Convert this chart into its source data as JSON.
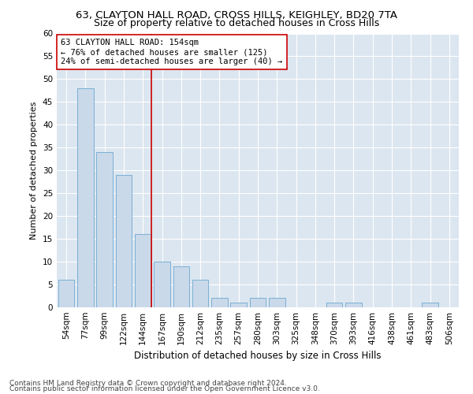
{
  "title": "63, CLAYTON HALL ROAD, CROSS HILLS, KEIGHLEY, BD20 7TA",
  "subtitle": "Size of property relative to detached houses in Cross Hills",
  "xlabel": "Distribution of detached houses by size in Cross Hills",
  "ylabel": "Number of detached properties",
  "categories": [
    "54sqm",
    "77sqm",
    "99sqm",
    "122sqm",
    "144sqm",
    "167sqm",
    "190sqm",
    "212sqm",
    "235sqm",
    "257sqm",
    "280sqm",
    "303sqm",
    "325sqm",
    "348sqm",
    "370sqm",
    "393sqm",
    "416sqm",
    "438sqm",
    "461sqm",
    "483sqm",
    "506sqm"
  ],
  "values": [
    6,
    48,
    34,
    29,
    16,
    10,
    9,
    6,
    2,
    1,
    2,
    2,
    0,
    0,
    1,
    1,
    0,
    0,
    0,
    1,
    0
  ],
  "bar_color": "#c9d9ea",
  "bar_edge_color": "#7bafd4",
  "ylim": [
    0,
    60
  ],
  "yticks": [
    0,
    5,
    10,
    15,
    20,
    25,
    30,
    35,
    40,
    45,
    50,
    55,
    60
  ],
  "vline_x": 4.425,
  "property_label": "63 CLAYTON HALL ROAD: 154sqm",
  "annotation_line1": "← 76% of detached houses are smaller (125)",
  "annotation_line2": "24% of semi-detached houses are larger (40) →",
  "annotation_box_color": "#ffffff",
  "annotation_box_edge": "#cc0000",
  "vline_color": "#cc0000",
  "footer_line1": "Contains HM Land Registry data © Crown copyright and database right 2024.",
  "footer_line2": "Contains public sector information licensed under the Open Government Licence v3.0.",
  "fig_bg_color": "#ffffff",
  "plot_bg_color": "#dce6f0",
  "grid_color": "#ffffff",
  "title_fontsize": 9.5,
  "subtitle_fontsize": 9,
  "xlabel_fontsize": 8.5,
  "ylabel_fontsize": 8,
  "tick_fontsize": 7.5,
  "annotation_fontsize": 7.5,
  "footer_fontsize": 6.5
}
